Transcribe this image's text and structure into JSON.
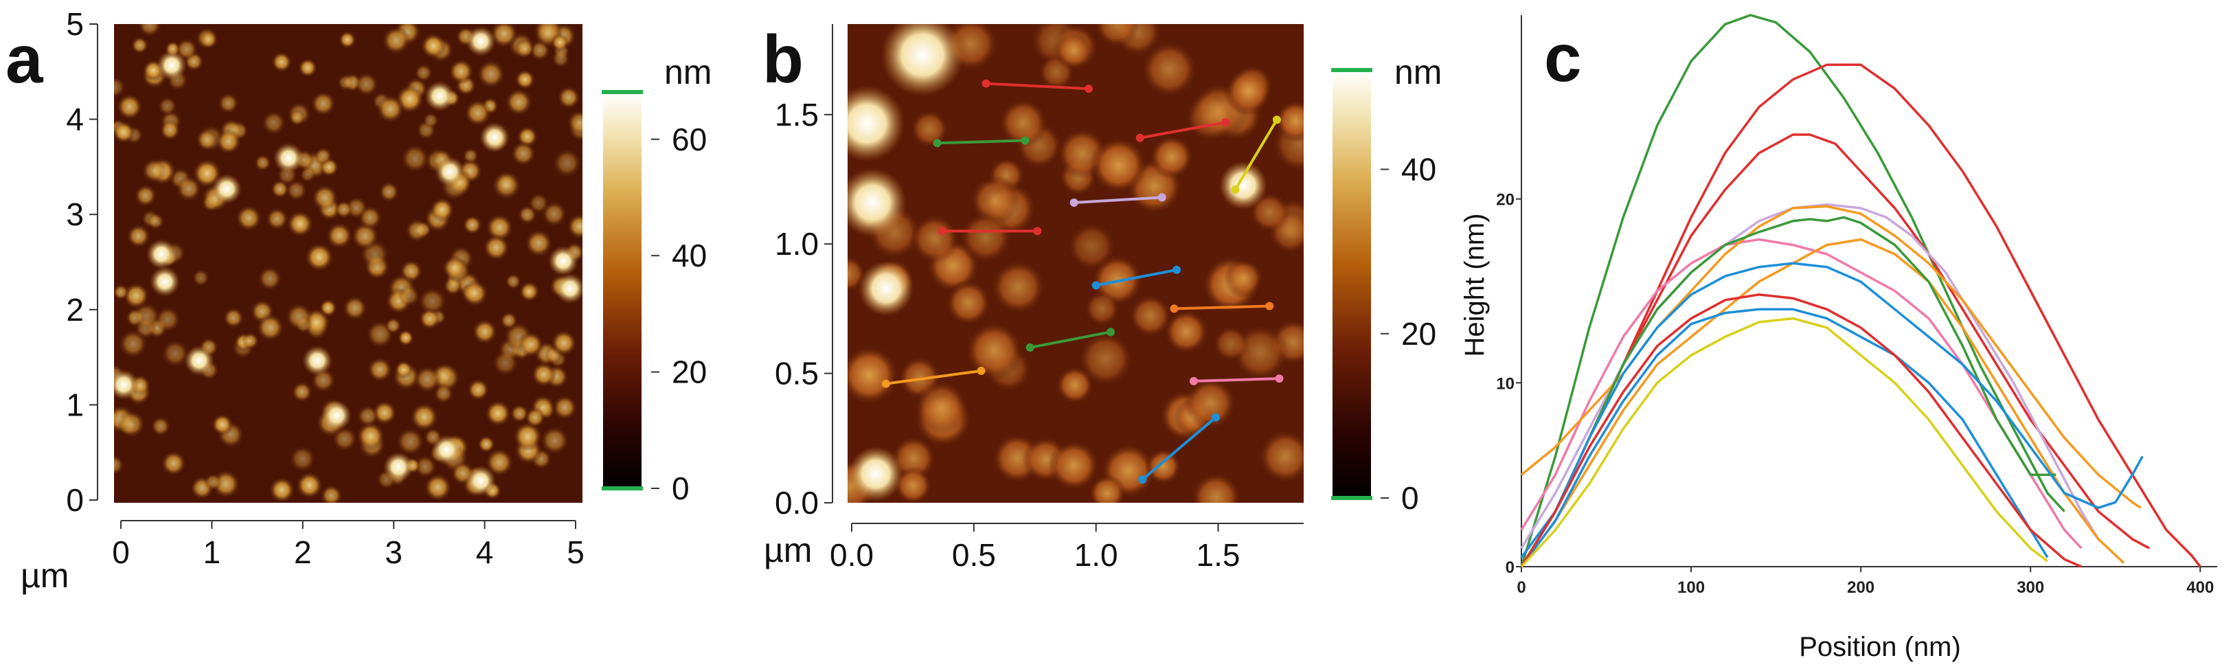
{
  "panels": {
    "a": {
      "letter": "a",
      "unit_x": "µm",
      "colorbar_unit": "nm",
      "x_ticks": [
        "0",
        "1",
        "2",
        "3",
        "4",
        "5"
      ],
      "y_ticks": [
        "0",
        "1",
        "2",
        "3",
        "4",
        "5"
      ],
      "colorbar_ticks": [
        "0",
        "20",
        "40",
        "60"
      ],
      "colorbar_values": [
        0,
        20,
        40,
        60
      ],
      "colorbar_range": [
        0,
        68
      ],
      "axis_range": [
        0,
        5
      ]
    },
    "b": {
      "letter": "b",
      "unit_x": "µm",
      "colorbar_unit": "nm",
      "x_ticks": [
        "0.0",
        "0.5",
        "1.0",
        "1.5"
      ],
      "y_ticks": [
        "0.0",
        "0.5",
        "1.0",
        "1.5"
      ],
      "colorbar_ticks": [
        "0",
        "20",
        "40"
      ],
      "colorbar_values": [
        0,
        20,
        40
      ],
      "colorbar_range": [
        0,
        52
      ],
      "axis_range_x": [
        0,
        1.85
      ],
      "axis_range_y": [
        0,
        1.85
      ],
      "segments": [
        {
          "color": "#e02f2f",
          "x1": 0.55,
          "y1": 1.62,
          "x2": 0.97,
          "y2": 1.6
        },
        {
          "color": "#3a9a3a",
          "x1": 0.35,
          "y1": 1.39,
          "x2": 0.71,
          "y2": 1.4
        },
        {
          "color": "#e02f2f",
          "x1": 1.18,
          "y1": 1.41,
          "x2": 1.53,
          "y2": 1.47
        },
        {
          "color": "#d8d01a",
          "x1": 1.57,
          "y1": 1.21,
          "x2": 1.74,
          "y2": 1.48
        },
        {
          "color": "#c8a8dc",
          "x1": 0.91,
          "y1": 1.16,
          "x2": 1.27,
          "y2": 1.18
        },
        {
          "color": "#e02f2f",
          "x1": 0.37,
          "y1": 1.05,
          "x2": 0.76,
          "y2": 1.05
        },
        {
          "color": "#1e8fd8",
          "x1": 1.0,
          "y1": 0.84,
          "x2": 1.33,
          "y2": 0.9
        },
        {
          "color": "#f07a20",
          "x1": 1.32,
          "y1": 0.75,
          "x2": 1.71,
          "y2": 0.76
        },
        {
          "color": "#3a9a3a",
          "x1": 0.73,
          "y1": 0.6,
          "x2": 1.06,
          "y2": 0.66
        },
        {
          "color": "#f59a20",
          "x1": 0.14,
          "y1": 0.46,
          "x2": 0.53,
          "y2": 0.51
        },
        {
          "color": "#f07aa8",
          "x1": 1.4,
          "y1": 0.47,
          "x2": 1.75,
          "y2": 0.48
        },
        {
          "color": "#1e8fd8",
          "x1": 1.19,
          "y1": 0.09,
          "x2": 1.49,
          "y2": 0.33
        }
      ]
    },
    "c": {
      "letter": "c"
    }
  },
  "chart_data": {
    "type": "line",
    "title": "",
    "xlabel": "Position (nm)",
    "ylabel": "Height (nm)",
    "xlim": [
      0,
      410
    ],
    "ylim": [
      0,
      30
    ],
    "x_ticks": [
      "0",
      "100",
      "200",
      "300",
      "400"
    ],
    "x_tick_values": [
      0,
      100,
      200,
      300,
      400
    ],
    "y_ticks": [
      "0",
      "10",
      "20"
    ],
    "y_tick_values": [
      0,
      10,
      20
    ],
    "series": [
      {
        "color": "#3a9a3a",
        "x": [
          0,
          20,
          40,
          60,
          80,
          100,
          120,
          135,
          150,
          170,
          190,
          210,
          230,
          250,
          270,
          290,
          310,
          320
        ],
        "y": [
          0,
          6,
          13,
          19,
          24,
          27.5,
          29.5,
          30,
          29.6,
          28,
          25.5,
          22.5,
          19,
          15,
          11,
          7.5,
          4,
          3
        ]
      },
      {
        "color": "#e02f2f",
        "x": [
          0,
          20,
          40,
          60,
          80,
          100,
          120,
          140,
          160,
          180,
          200,
          220,
          240,
          260,
          280,
          300,
          320,
          340,
          360,
          380,
          395,
          400
        ],
        "y": [
          0,
          3,
          7,
          11,
          15,
          19,
          22.5,
          25,
          26.5,
          27.3,
          27.3,
          26,
          24,
          21.5,
          18.5,
          15,
          11.5,
          8,
          5,
          2,
          0.6,
          0
        ]
      },
      {
        "color": "#e02f2f",
        "x": [
          0,
          20,
          40,
          60,
          80,
          100,
          120,
          140,
          160,
          170,
          185,
          200,
          220,
          240,
          260,
          280,
          300,
          320,
          340,
          360,
          370
        ],
        "y": [
          0,
          3,
          7,
          11,
          14.5,
          18,
          20.5,
          22.5,
          23.5,
          23.5,
          23,
          21.5,
          19.5,
          17,
          14,
          11,
          8,
          5.5,
          3,
          1.5,
          1
        ]
      },
      {
        "color": "#c8a8dc",
        "x": [
          0,
          20,
          40,
          60,
          80,
          100,
          120,
          140,
          160,
          180,
          200,
          215,
          230,
          250,
          270,
          290,
          310,
          330,
          340
        ],
        "y": [
          1,
          4,
          7.5,
          11,
          14,
          16,
          17.5,
          18.8,
          19.5,
          19.7,
          19.5,
          19,
          18,
          16,
          13,
          10,
          6.5,
          3,
          1.5
        ]
      },
      {
        "color": "#f07aa8",
        "x": [
          0,
          20,
          40,
          60,
          80,
          100,
          120,
          140,
          160,
          180,
          200,
          220,
          240,
          260,
          280,
          300,
          320,
          330
        ],
        "y": [
          2,
          5,
          9,
          12.5,
          15,
          16.5,
          17.5,
          17.8,
          17.5,
          17,
          16,
          15,
          13.5,
          11,
          8,
          5,
          2,
          1
        ]
      },
      {
        "color": "#f59a20",
        "x": [
          0,
          20,
          40,
          60,
          80,
          100,
          120,
          140,
          160,
          180,
          200,
          220,
          240,
          260,
          280,
          300,
          320,
          340,
          360,
          365
        ],
        "y": [
          5,
          6.5,
          8.5,
          10.5,
          13,
          15,
          17,
          18.5,
          19.5,
          19.6,
          19.2,
          18,
          16.5,
          14.5,
          12,
          9.5,
          7,
          5,
          3.5,
          3.2
        ]
      },
      {
        "color": "#f59a20",
        "x": [
          0,
          20,
          40,
          60,
          80,
          100,
          120,
          140,
          160,
          180,
          200,
          220,
          240,
          260,
          280,
          300,
          320,
          340,
          355
        ],
        "y": [
          0,
          2.5,
          5.5,
          8.5,
          11,
          12.5,
          14,
          15.5,
          16.5,
          17.5,
          17.8,
          17,
          15.5,
          13,
          10,
          7,
          4,
          1.5,
          0.2
        ]
      },
      {
        "color": "#3a9a3a",
        "x": [
          0,
          20,
          40,
          60,
          80,
          100,
          120,
          140,
          150,
          160,
          170,
          180,
          190,
          200,
          220,
          240,
          260,
          280,
          300,
          315
        ],
        "y": [
          0,
          3,
          7,
          11,
          14,
          16,
          17.5,
          18.2,
          18.5,
          18.8,
          18.9,
          18.8,
          19,
          18.7,
          17.5,
          15.5,
          12,
          8,
          5,
          5
        ]
      },
      {
        "color": "#1e8fd8",
        "x": [
          0,
          20,
          40,
          60,
          80,
          100,
          120,
          140,
          160,
          180,
          200,
          220,
          240,
          260,
          280,
          300,
          320,
          340,
          350,
          360,
          366
        ],
        "y": [
          0.5,
          3,
          7,
          10.5,
          13,
          14.8,
          15.8,
          16.3,
          16.5,
          16.3,
          15.5,
          14,
          12.5,
          11,
          9,
          6.5,
          4,
          3.2,
          3.5,
          5,
          6
        ]
      },
      {
        "color": "#1e8fd8",
        "x": [
          0,
          20,
          40,
          60,
          80,
          100,
          120,
          140,
          160,
          180,
          200,
          220,
          240,
          260,
          280,
          300,
          310
        ],
        "y": [
          0,
          2.5,
          6,
          9,
          11.5,
          13.2,
          13.8,
          14,
          14,
          13.5,
          12.5,
          11.5,
          10,
          8,
          5,
          2,
          0.5
        ]
      },
      {
        "color": "#e02f2f",
        "x": [
          0,
          20,
          40,
          60,
          80,
          100,
          120,
          140,
          160,
          180,
          200,
          220,
          240,
          260,
          280,
          300,
          320,
          330
        ],
        "y": [
          0,
          3,
          6.5,
          9.5,
          12,
          13.5,
          14.5,
          14.8,
          14.6,
          14,
          13,
          11.5,
          9.5,
          7,
          4.5,
          2,
          0.4,
          0
        ]
      },
      {
        "color": "#d8d01a",
        "x": [
          0,
          20,
          40,
          60,
          80,
          100,
          120,
          140,
          160,
          180,
          200,
          220,
          240,
          260,
          280,
          300,
          310
        ],
        "y": [
          0,
          2,
          4.5,
          7.5,
          10,
          11.5,
          12.5,
          13.3,
          13.5,
          13,
          11.5,
          10,
          8,
          5.5,
          3,
          1,
          0.3
        ]
      }
    ]
  }
}
